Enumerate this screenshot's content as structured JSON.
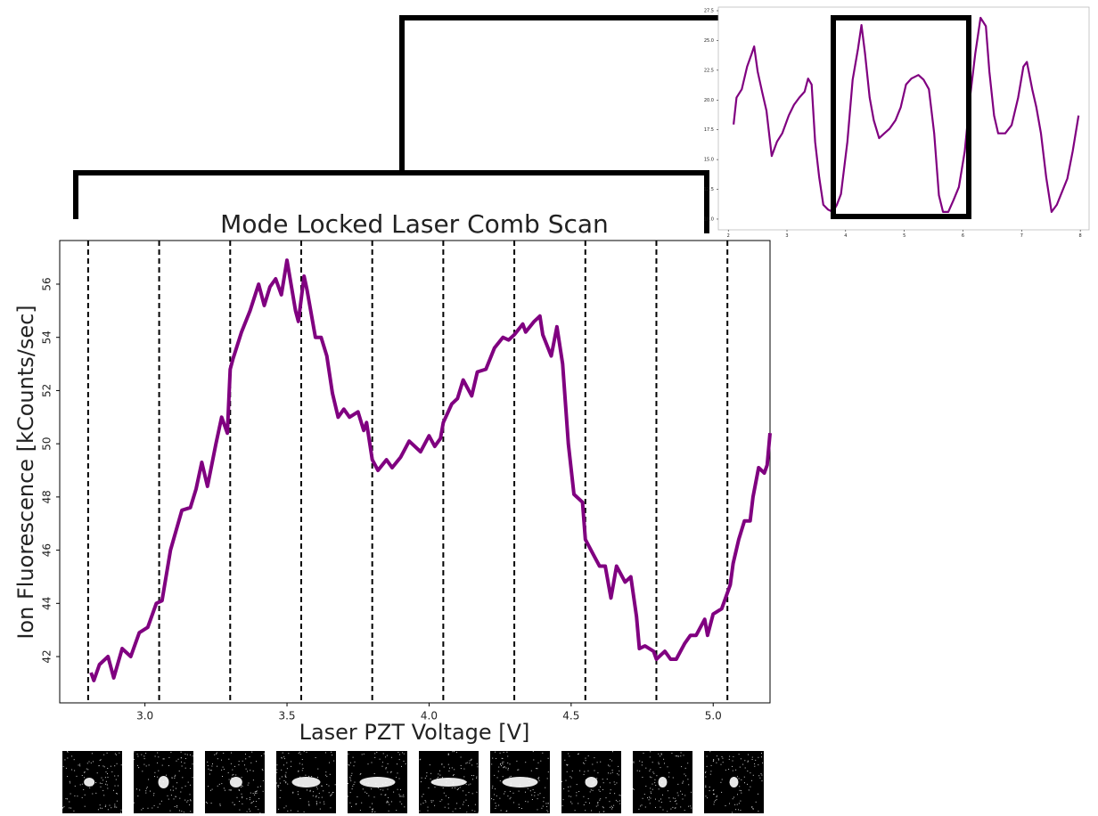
{
  "chart_data": [
    {
      "type": "line",
      "title": "Mode Locked Laser Comb Scan",
      "x_label": "Laser PZT Voltage [V]",
      "y_label": "Ion Fluorescence [kCounts/sec]",
      "xlim": [
        2.7,
        5.2
      ],
      "ylim": [
        40.26,
        57.64
      ],
      "xticks": [
        {
          "value": 3,
          "label": "3.0"
        },
        {
          "value": 3.5,
          "label": "3.5"
        },
        {
          "value": 4,
          "label": "4.0"
        },
        {
          "value": 4.5,
          "label": "4.5"
        },
        {
          "value": 5,
          "label": "5.0"
        }
      ],
      "yticks": [
        42,
        44,
        46,
        48,
        50,
        52,
        54,
        56
      ],
      "vlines": [
        2.8,
        3.05,
        3.3,
        3.55,
        3.8,
        4.05,
        4.3,
        4.55,
        4.8,
        5.05
      ],
      "series": [
        {
          "color": "#800080",
          "x": [
            2.81,
            2.82,
            2.84,
            2.87,
            2.89,
            2.92,
            2.95,
            2.98,
            3.01,
            3.04,
            3.06,
            3.09,
            3.13,
            3.16,
            3.18,
            3.2,
            3.22,
            3.25,
            3.27,
            3.29,
            3.3,
            3.31,
            3.34,
            3.37,
            3.4,
            3.42,
            3.44,
            3.46,
            3.48,
            3.5,
            3.53,
            3.54,
            3.56,
            3.57,
            3.6,
            3.62,
            3.64,
            3.66,
            3.68,
            3.7,
            3.72,
            3.75,
            3.77,
            3.78,
            3.8,
            3.82,
            3.85,
            3.87,
            3.9,
            3.93,
            3.97,
            4.0,
            4.02,
            4.04,
            4.05,
            4.08,
            4.1,
            4.12,
            4.15,
            4.17,
            4.2,
            4.23,
            4.26,
            4.28,
            4.3,
            4.33,
            4.34,
            4.37,
            4.39,
            4.4,
            4.43,
            4.45,
            4.47,
            4.49,
            4.51,
            4.54,
            4.55,
            4.58,
            4.6,
            4.62,
            4.64,
            4.66,
            4.69,
            4.71,
            4.73,
            4.74,
            4.76,
            4.79,
            4.8,
            4.83,
            4.85,
            4.87,
            4.9,
            4.92,
            4.94,
            4.97,
            4.98,
            5.0,
            5.03,
            5.06,
            5.07,
            5.09,
            5.11,
            5.13,
            5.14,
            5.16,
            5.18,
            5.19,
            5.2
          ],
          "values": [
            41.4,
            41.1,
            41.7,
            42.0,
            41.2,
            42.3,
            42.0,
            42.9,
            43.1,
            44.0,
            44.1,
            46.0,
            47.5,
            47.6,
            48.3,
            49.3,
            48.4,
            50.0,
            51.0,
            50.4,
            52.8,
            53.2,
            54.2,
            55.0,
            56.0,
            55.2,
            55.9,
            56.2,
            55.6,
            56.9,
            55.0,
            54.6,
            56.3,
            55.8,
            54.0,
            54.0,
            53.3,
            51.9,
            51.0,
            51.3,
            51.0,
            51.2,
            50.5,
            50.8,
            49.4,
            49.0,
            49.4,
            49.1,
            49.5,
            50.1,
            49.7,
            50.3,
            49.9,
            50.2,
            50.8,
            51.5,
            51.7,
            52.4,
            51.8,
            52.7,
            52.8,
            53.6,
            54.0,
            53.9,
            54.1,
            54.5,
            54.2,
            54.6,
            54.8,
            54.1,
            53.3,
            54.4,
            53.0,
            50.0,
            48.1,
            47.8,
            46.4,
            45.8,
            45.4,
            45.4,
            44.2,
            45.4,
            44.8,
            45.0,
            43.5,
            42.3,
            42.4,
            42.2,
            41.9,
            42.2,
            41.9,
            41.9,
            42.5,
            42.8,
            42.8,
            43.4,
            42.8,
            43.6,
            43.8,
            44.7,
            45.5,
            46.4,
            47.1,
            47.1,
            48.0,
            49.1,
            48.9,
            49.2,
            50.4
          ]
        }
      ]
    },
    {
      "type": "line",
      "xlim": [
        1.83,
        8.15
      ],
      "ylim": [
        9.1,
        27.8
      ],
      "xticks": [
        2,
        3,
        4,
        5,
        6,
        7,
        8
      ],
      "yticks": [
        {
          "value": 10,
          "label": "10.0"
        },
        12.5,
        {
          "value": 15,
          "label": "15.0"
        },
        17.5,
        {
          "value": 20,
          "label": "20.0"
        },
        22.5,
        {
          "value": 25,
          "label": "25.0"
        },
        27.5
      ],
      "series": [
        {
          "color": "#800080",
          "x": [
            2.09,
            2.14,
            2.23,
            2.32,
            2.4,
            2.44,
            2.5,
            2.58,
            2.65,
            2.74,
            2.83,
            2.92,
            3.03,
            3.12,
            3.21,
            3.3,
            3.36,
            3.42,
            3.48,
            3.55,
            3.62,
            3.7,
            3.78,
            3.85,
            3.92,
            4.03,
            4.12,
            4.21,
            4.27,
            4.33,
            4.41,
            4.48,
            4.57,
            4.66,
            4.75,
            4.85,
            4.94,
            5.03,
            5.12,
            5.24,
            5.33,
            5.42,
            5.51,
            5.59,
            5.66,
            5.75,
            5.84,
            5.93,
            6.03,
            6.12,
            6.21,
            6.3,
            6.39,
            6.45,
            6.53,
            6.6,
            6.72,
            6.83,
            6.94,
            7.03,
            7.09,
            7.18,
            7.25,
            7.33,
            7.42,
            7.51,
            7.6,
            7.69,
            7.78,
            7.87,
            7.97
          ],
          "values": [
            17.95,
            20.2,
            20.9,
            22.8,
            23.9,
            24.5,
            22.4,
            20.6,
            19.1,
            15.3,
            16.5,
            17.2,
            18.7,
            19.6,
            20.2,
            20.7,
            21.8,
            21.3,
            16.5,
            13.5,
            11.2,
            10.8,
            10.6,
            11.2,
            12.1,
            16.5,
            21.7,
            24.3,
            26.3,
            23.9,
            20.2,
            18.3,
            16.8,
            17.2,
            17.6,
            18.3,
            19.4,
            21.3,
            21.8,
            22.1,
            21.7,
            20.9,
            17.2,
            12.0,
            10.6,
            10.6,
            11.6,
            12.7,
            15.7,
            20.2,
            23.9,
            26.9,
            26.2,
            22.4,
            18.7,
            17.2,
            17.2,
            17.9,
            20.2,
            22.8,
            23.2,
            20.9,
            19.4,
            17.2,
            13.5,
            10.6,
            11.2,
            12.3,
            13.4,
            15.7,
            18.7
          ]
        }
      ]
    }
  ]
}
